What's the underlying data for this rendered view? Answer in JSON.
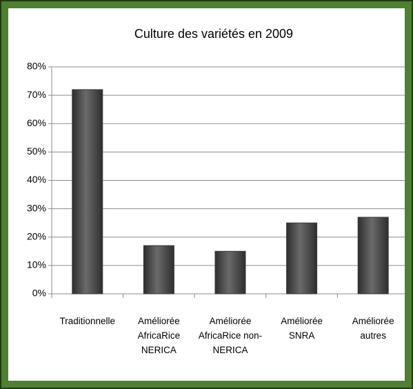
{
  "chart_data": {
    "type": "bar",
    "title": "Culture des variétés en 2009",
    "categories": [
      "Traditionnelle",
      "Améliorée AfricaRice NERICA",
      "Améliorée AfricaRice non-NERICA",
      "Améliorée SNRA",
      "Améliorée autres"
    ],
    "values": [
      72,
      17,
      15,
      25,
      27
    ],
    "color": "#4d4d4d",
    "ylim": [
      0,
      80
    ],
    "yticks": [
      {
        "value": 0,
        "label": "0%"
      },
      {
        "value": 10,
        "label": "10%"
      },
      {
        "value": 20,
        "label": "20%"
      },
      {
        "value": 30,
        "label": "30%"
      },
      {
        "value": 40,
        "label": "40%"
      },
      {
        "value": 50,
        "label": "50%"
      },
      {
        "value": 60,
        "label": "60%"
      },
      {
        "value": 70,
        "label": "70%"
      },
      {
        "value": 80,
        "label": "80%"
      }
    ],
    "grid": true
  }
}
